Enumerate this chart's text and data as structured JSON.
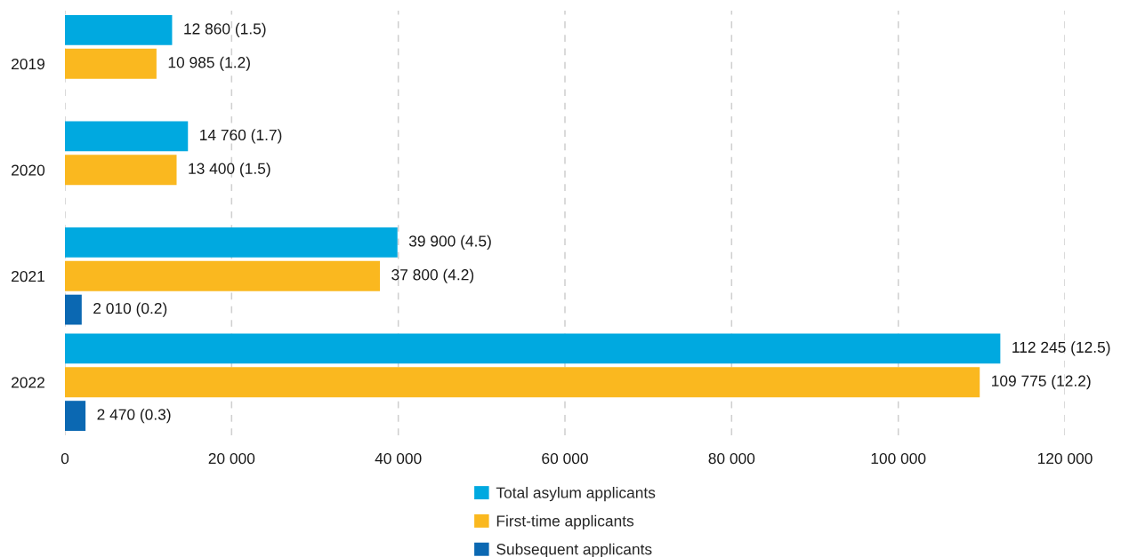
{
  "chart_data": {
    "type": "bar",
    "orientation": "horizontal",
    "categories": [
      "2019",
      "2020",
      "2021",
      "2022"
    ],
    "series": [
      {
        "name": "Total asylum applicants",
        "color": "#00a9e0",
        "values": [
          12860,
          14760,
          39900,
          112245
        ],
        "value_labels": [
          "12 860 (1.5)",
          "14 760 (1.7)",
          "39 900 (4.5)",
          "112 245 (12.5)"
        ]
      },
      {
        "name": "First-time applicants",
        "color": "#fab81f",
        "values": [
          10985,
          13400,
          37800,
          109775
        ],
        "value_labels": [
          "10 985 (1.2)",
          "13 400 (1.5)",
          "37 800 (4.2)",
          "109 775 (12.2)"
        ]
      },
      {
        "name": "Subsequent applicants",
        "color": "#0b68b2",
        "values": [
          null,
          null,
          2010,
          2470
        ],
        "value_labels": [
          null,
          null,
          "2 010 (0.2)",
          "2 470 (0.3)"
        ]
      }
    ],
    "xlim": [
      0,
      120000
    ],
    "xticks": [
      0,
      {
        "value": 20000,
        "label": "20 000"
      },
      {
        "value": 40000,
        "label": "40 000"
      },
      {
        "value": 60000,
        "label": "60 000"
      },
      {
        "value": 80000,
        "label": "80 000"
      },
      {
        "value": 100000,
        "label": "100 000"
      },
      {
        "value": 120000,
        "label": "120 000"
      }
    ],
    "grid": "x",
    "legend": "bottom"
  }
}
